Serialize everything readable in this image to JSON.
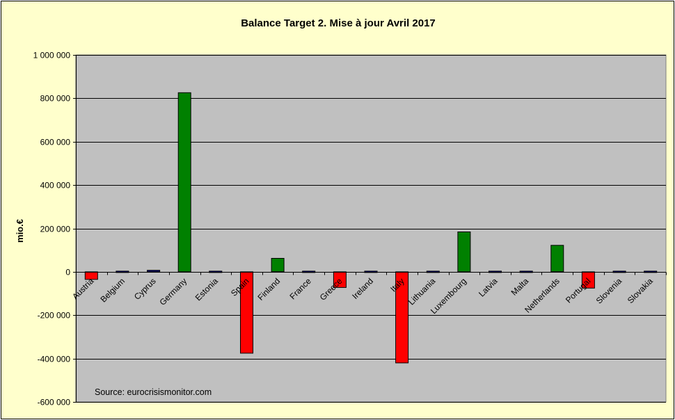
{
  "chart_data": {
    "type": "bar",
    "title": "Balance Target 2. Mise à jour Avril 2017",
    "ylabel": "mio.€",
    "xlabel": "",
    "ylim": [
      -600000,
      1000000
    ],
    "ytick_values": [
      1000000,
      800000,
      600000,
      400000,
      200000,
      0,
      -200000,
      -400000,
      -600000
    ],
    "ytick_labels": [
      "1 000 000",
      "800 000",
      "600 000",
      "400 000",
      "200 000",
      "0",
      "-200 000",
      "-400 000",
      "-600 000"
    ],
    "grid": true,
    "legend": "none",
    "categories": [
      "Austria",
      "Belgium",
      "Cyprus",
      "Germany",
      "Estonia",
      "Spain",
      "Finland",
      "France",
      "Greece",
      "Ireland",
      "Italy",
      "Lithuania",
      "Luxembourg",
      "Latvia",
      "Malta",
      "Netherlands",
      "Portugal",
      "Slovenia",
      "Slovakia"
    ],
    "values": [
      -35000,
      -3000,
      7000,
      826000,
      0,
      -375000,
      62000,
      -3000,
      -72000,
      3000,
      -420000,
      -2000,
      184000,
      -3000,
      3000,
      122000,
      -75000,
      0,
      -3000
    ],
    "colors": {
      "positive": "#008000",
      "negative": "#ff0000",
      "small": "#000080",
      "plot_background": "#c0c0c0",
      "page_background": "#ffffcc"
    },
    "annotation": "Source: eurocrisismonitor.com"
  }
}
